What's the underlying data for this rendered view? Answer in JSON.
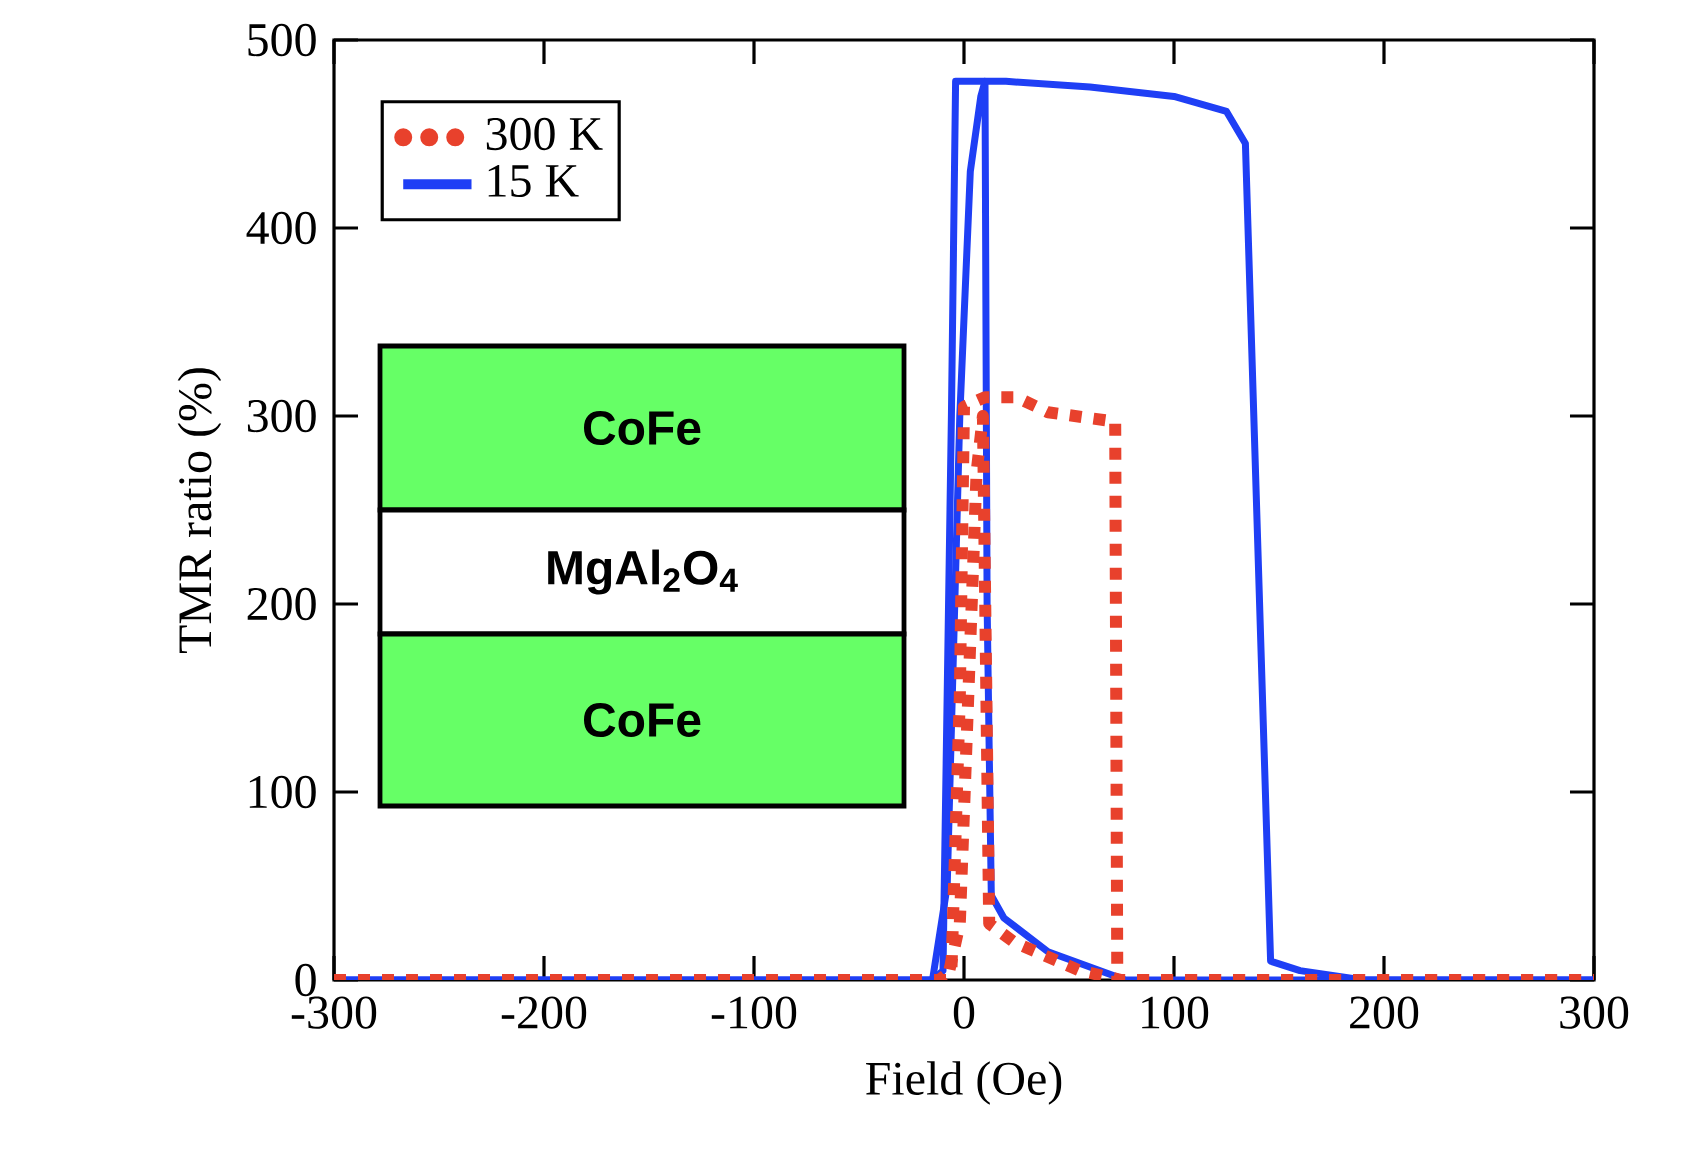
{
  "chart_data": {
    "type": "line",
    "xlabel": "Field (Oe)",
    "ylabel": "TMR ratio (%)",
    "xlim": [
      -300,
      300
    ],
    "ylim": [
      0,
      500
    ],
    "xticks": [
      -300,
      -200,
      -100,
      0,
      100,
      200,
      300
    ],
    "yticks": [
      0,
      100,
      200,
      300,
      400,
      500
    ],
    "grid": false,
    "legend": "top left",
    "series": [
      {
        "name": "300 K",
        "color": "#e8412c",
        "line_style": "dotted",
        "x": [
          -300,
          -100,
          -12,
          -6,
          -2,
          0,
          10,
          25,
          40,
          72,
          73,
          100,
          300
        ],
        "values": [
          0,
          0,
          0,
          5,
          150,
          305,
          310,
          310,
          302,
          297,
          0,
          0,
          0
        ]
      },
      {
        "color": "#e8412c",
        "line_style": "dotted",
        "x": [
          -300,
          -8,
          -2,
          2,
          6,
          9,
          12,
          24,
          55,
          75,
          100,
          300
        ],
        "values": [
          0,
          0,
          30,
          150,
          270,
          300,
          30,
          20,
          5,
          0,
          0,
          0
        ]
      },
      {
        "name": "15 K",
        "color": "#1f3ff5",
        "line_style": "solid",
        "x": [
          -300,
          -100,
          -15,
          -10,
          -6,
          -4,
          20,
          60,
          100,
          125,
          134,
          146,
          160,
          190,
          300
        ],
        "values": [
          0,
          0,
          0,
          5,
          300,
          478,
          478,
          475,
          470,
          462,
          445,
          10,
          5,
          0,
          0
        ]
      },
      {
        "color": "#1f3ff5",
        "line_style": "solid",
        "x": [
          -300,
          -15,
          -8,
          -2,
          3,
          8,
          10,
          11,
          13,
          19,
          40,
          77,
          100,
          300
        ],
        "values": [
          0,
          0,
          50,
          300,
          430,
          470,
          478,
          200,
          45,
          33,
          15,
          0,
          0,
          0
        ]
      }
    ],
    "annotations": [
      "CoFe",
      "MgAl$_{2}$O$_{4}$",
      "CoFe"
    ]
  }
}
